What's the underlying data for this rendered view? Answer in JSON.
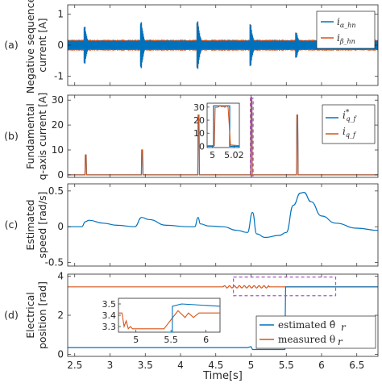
{
  "colors": {
    "blue": "#0072BD",
    "orange": "#D95319",
    "dash": "#A855C8",
    "grid": "#262626"
  },
  "chart_data": [
    {
      "panel": "(a)",
      "type": "line",
      "ylabel": "Negative sequence\ncurrent [A]",
      "ylim": [
        -1.3,
        1.3
      ],
      "yticks": [
        "-1",
        "0",
        "1"
      ],
      "ytick_values": [
        -1,
        0,
        1
      ],
      "legend": {
        "position": "top-right",
        "entries": [
          "i_α_hn",
          "i_β_hn"
        ]
      },
      "series": [
        {
          "name": "i_α_hn",
          "color": "#0072BD",
          "description": "high-frequency carrier ripple with bursts at 2.65, 3.45, 4.25, 5.0, 5.65 s",
          "envelope_base": 0.15,
          "bursts": [
            [
              2.65,
              0.6
            ],
            [
              3.45,
              0.8
            ],
            [
              4.25,
              0.85
            ],
            [
              5.0,
              0.75
            ],
            [
              5.65,
              0.45
            ]
          ]
        },
        {
          "name": "i_β_hn",
          "color": "#D95319",
          "envelope_base": 0.18
        }
      ]
    },
    {
      "panel": "(b)",
      "type": "line",
      "ylabel": "Fundamental\nq-axis current [A]",
      "ylim": [
        -1,
        32
      ],
      "yticks": [
        "0",
        "10",
        "20",
        "30"
      ],
      "ytick_values": [
        0,
        10,
        20,
        30
      ],
      "legend": {
        "position": "right",
        "entries": [
          "i*_q_f",
          "i_q_f"
        ]
      },
      "series": [
        {
          "name": "i*_q_f",
          "color": "#0072BD",
          "pulses": [
            [
              2.65,
              8
            ],
            [
              3.45,
              10
            ],
            [
              4.25,
              24
            ],
            [
              5.0,
              31
            ],
            [
              5.65,
              24
            ]
          ]
        },
        {
          "name": "i_q_f",
          "color": "#D95319",
          "pulses": [
            [
              2.65,
              8
            ],
            [
              3.45,
              10
            ],
            [
              4.25,
              24
            ],
            [
              5.0,
              31
            ],
            [
              5.65,
              24
            ]
          ]
        }
      ],
      "inset": {
        "xticks": [
          "5",
          "5.02"
        ],
        "xtick_values": [
          5.0,
          5.02
        ],
        "yticks": [
          "0",
          "10",
          "20",
          "30"
        ],
        "ytick_values": [
          0,
          10,
          20,
          30
        ],
        "xlim": [
          4.995,
          5.025
        ],
        "ylim": [
          -1,
          33
        ],
        "pulse": {
          "start": 5.001,
          "end": 5.016,
          "value": 31
        }
      }
    },
    {
      "panel": "(c)",
      "type": "line",
      "ylabel": "Estimated\nspeed [rad/s]",
      "ylim": [
        -0.55,
        0.6
      ],
      "yticks": [
        "-0.5",
        "0",
        "0.5"
      ],
      "ytick_values": [
        -0.5,
        0,
        0.5
      ],
      "series": [
        {
          "name": "",
          "color": "#0072BD",
          "x": [
            2.4,
            2.6,
            2.65,
            2.7,
            2.9,
            3.1,
            3.35,
            3.45,
            3.55,
            3.8,
            4.1,
            4.2,
            4.25,
            4.28,
            4.4,
            4.6,
            4.8,
            4.95,
            5.02,
            5.08,
            5.2,
            5.4,
            5.5,
            5.6,
            5.7,
            5.75,
            5.85,
            6.0,
            6.2,
            6.5,
            6.8
          ],
          "y": [
            0.0,
            0.0,
            0.07,
            0.09,
            0.05,
            0.02,
            0.0,
            0.13,
            0.1,
            0.02,
            0.0,
            0.0,
            0.13,
            0.04,
            0.01,
            0.0,
            -0.05,
            -0.08,
            0.2,
            -0.1,
            -0.15,
            -0.12,
            -0.08,
            0.3,
            0.47,
            0.48,
            0.35,
            0.15,
            0.05,
            -0.02,
            -0.05
          ]
        }
      ]
    },
    {
      "panel": "(d)",
      "type": "line",
      "ylabel": "Electrical\nposition [rad]",
      "ylim": [
        -0.1,
        4.1
      ],
      "yticks": [
        "0",
        "2",
        "4"
      ],
      "ytick_values": [
        0,
        2,
        4
      ],
      "xlabel": "Time[s]",
      "xlim": [
        2.4,
        6.8
      ],
      "xticks": [
        "2.5",
        "3",
        "3.5",
        "4",
        "4.5",
        "5",
        "5.5",
        "6",
        "6.5"
      ],
      "xtick_values": [
        2.5,
        3,
        3.5,
        4,
        4.5,
        5,
        5.5,
        6,
        6.5
      ],
      "legend": {
        "position": "bottom-right",
        "entries": [
          "estimated θ̂r",
          "measured θr"
        ]
      },
      "series": [
        {
          "name": "estimated θ̂r",
          "color": "#0072BD",
          "x": [
            2.4,
            4.95,
            5.0,
            5.02,
            5.4,
            5.48,
            5.49,
            6.8
          ],
          "y": [
            0.35,
            0.35,
            0.4,
            0.25,
            0.25,
            0.25,
            3.45,
            3.45
          ]
        },
        {
          "name": "measured θr",
          "color": "#D95319",
          "x": [
            2.4,
            5.4,
            5.5,
            6.8
          ],
          "y": [
            3.45,
            3.45,
            3.45,
            3.5
          ]
        }
      ],
      "inset": {
        "xticks": [
          "5",
          "5.5",
          "6"
        ],
        "xtick_values": [
          5,
          5.5,
          6
        ],
        "yticks": [
          "3.5",
          "3.4",
          "3.3"
        ],
        "ytick_values": [
          3.5,
          3.4,
          3.3
        ],
        "xlim": [
          4.75,
          6.2
        ],
        "ylim": [
          3.25,
          3.55
        ]
      }
    }
  ]
}
